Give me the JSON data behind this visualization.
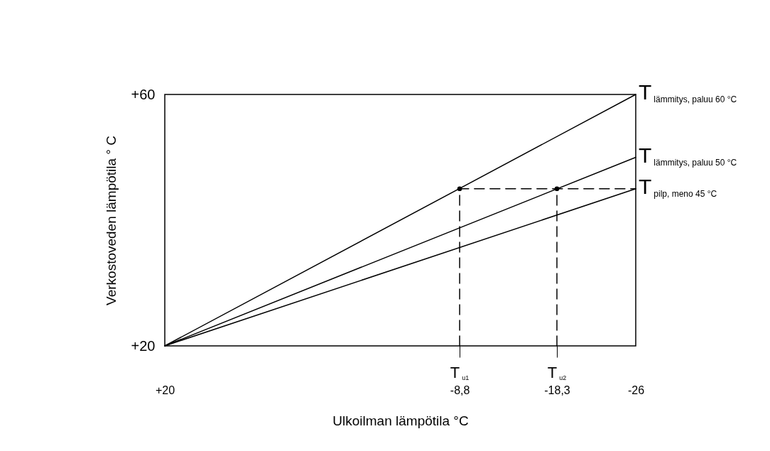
{
  "chart_data": {
    "type": "line",
    "xlabel": "Ulkoilman lämpötila °C",
    "ylabel": "Verkostoveden lämpötila ° C",
    "xlim": [
      20,
      -26
    ],
    "ylim": [
      20,
      60
    ],
    "xticks": [
      {
        "value": 20,
        "label": "+20"
      },
      {
        "value": -8.8,
        "label": "-8,8"
      },
      {
        "value": -18.3,
        "label": "-18,3"
      },
      -26
    ],
    "yticks": [
      {
        "value": 20,
        "label": "+20"
      },
      {
        "value": 60,
        "label": "+60"
      }
    ],
    "grid": false,
    "marker": "none",
    "line_style": "solid",
    "series": [
      {
        "color": "#000000",
        "line_style": "dashed",
        "x": [
          -8.8,
          -8.8,
          -26
        ],
        "values": [
          20,
          45,
          45
        ]
      },
      {
        "name": "T$_{lämmitys, paluu 60 °C}$",
        "color": "#000000",
        "x": [
          20,
          -26
        ],
        "values": [
          20,
          60
        ]
      },
      {
        "name": "T$_{lämmitys, paluu 50 °C}$",
        "color": "#000000",
        "x": [
          20,
          -26
        ],
        "values": [
          20,
          50
        ]
      },
      {
        "name": "T$_{pilp, meno 45 °C}$",
        "color": "#000000",
        "x": [
          20,
          -26
        ],
        "values": [
          20,
          45
        ]
      },
      {
        "color": "#000000",
        "line_style": "dashed",
        "x": [
          -18.3,
          -18.3
        ],
        "values": [
          20,
          45
        ]
      },
      {
        "type": "scatter",
        "marker": "circle",
        "color": "#000000",
        "x": [
          -8.8,
          -18.3
        ],
        "values": [
          45,
          45
        ]
      }
    ],
    "annotations": [
      {
        "text": "T$_{u1}$",
        "x": -8.8,
        "y": 20
      },
      {
        "text": "T$_{u2}$",
        "x": -18.3,
        "y": 20
      }
    ]
  }
}
